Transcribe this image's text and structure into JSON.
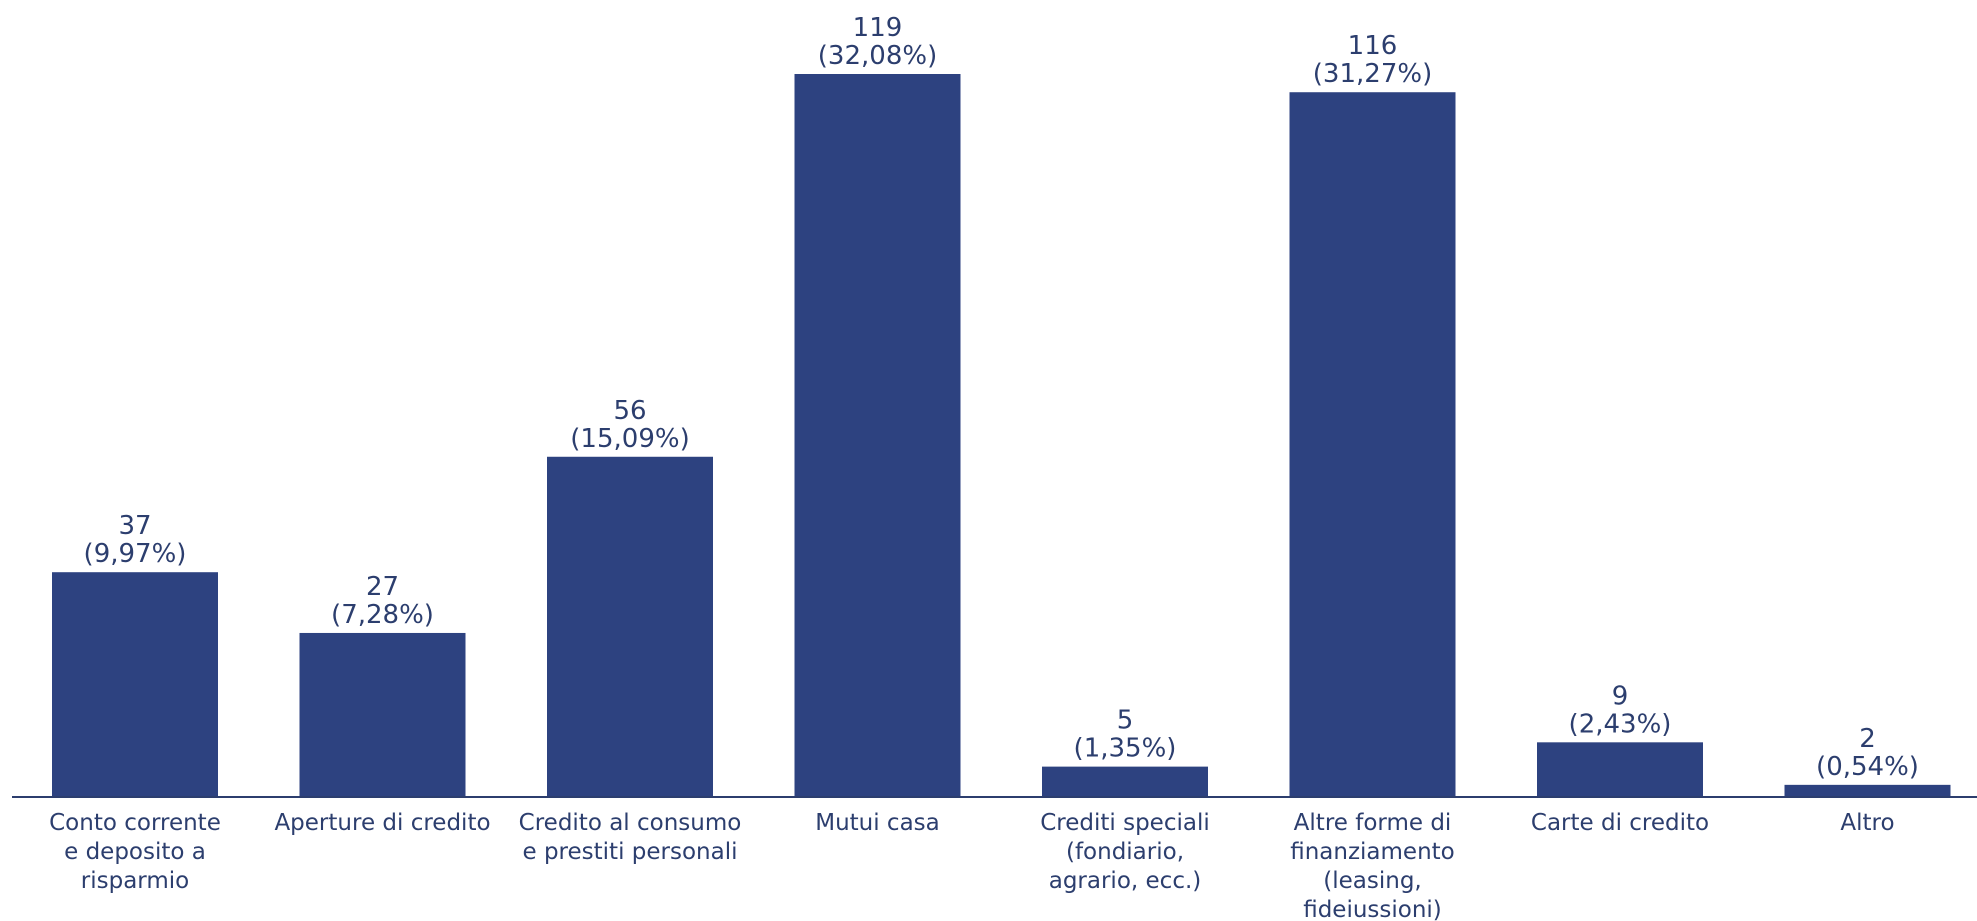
{
  "chart_data": {
    "type": "bar",
    "title": "",
    "xlabel": "",
    "ylabel": "",
    "ylim": [
      0,
      119
    ],
    "grid": false,
    "legend": "none",
    "bar_color": "#2d4280",
    "text_color": "#2c3e6e",
    "axis_color": "#2c3e6e",
    "categories": [
      [
        "Conto corrente",
        "e deposito a",
        "risparmio"
      ],
      [
        "Aperture di credito"
      ],
      [
        "Credito al consumo",
        "e prestiti personali"
      ],
      [
        "Mutui casa"
      ],
      [
        "Crediti speciali",
        "(fondiario,",
        "agrario, ecc.)"
      ],
      [
        "Altre forme di",
        "finanziamento",
        "(leasing,",
        "fideiussioni)"
      ],
      [
        "Carte di credito"
      ],
      [
        "Altro"
      ]
    ],
    "values": [
      37,
      27,
      56,
      119,
      5,
      116,
      9,
      2
    ],
    "percent_labels": [
      "(9,97%)",
      "(7,28%)",
      "(15,09%)",
      "(32,08%)",
      "(1,35%)",
      "(31,27%)",
      "(2,43%)",
      "(0,54%)"
    ]
  }
}
